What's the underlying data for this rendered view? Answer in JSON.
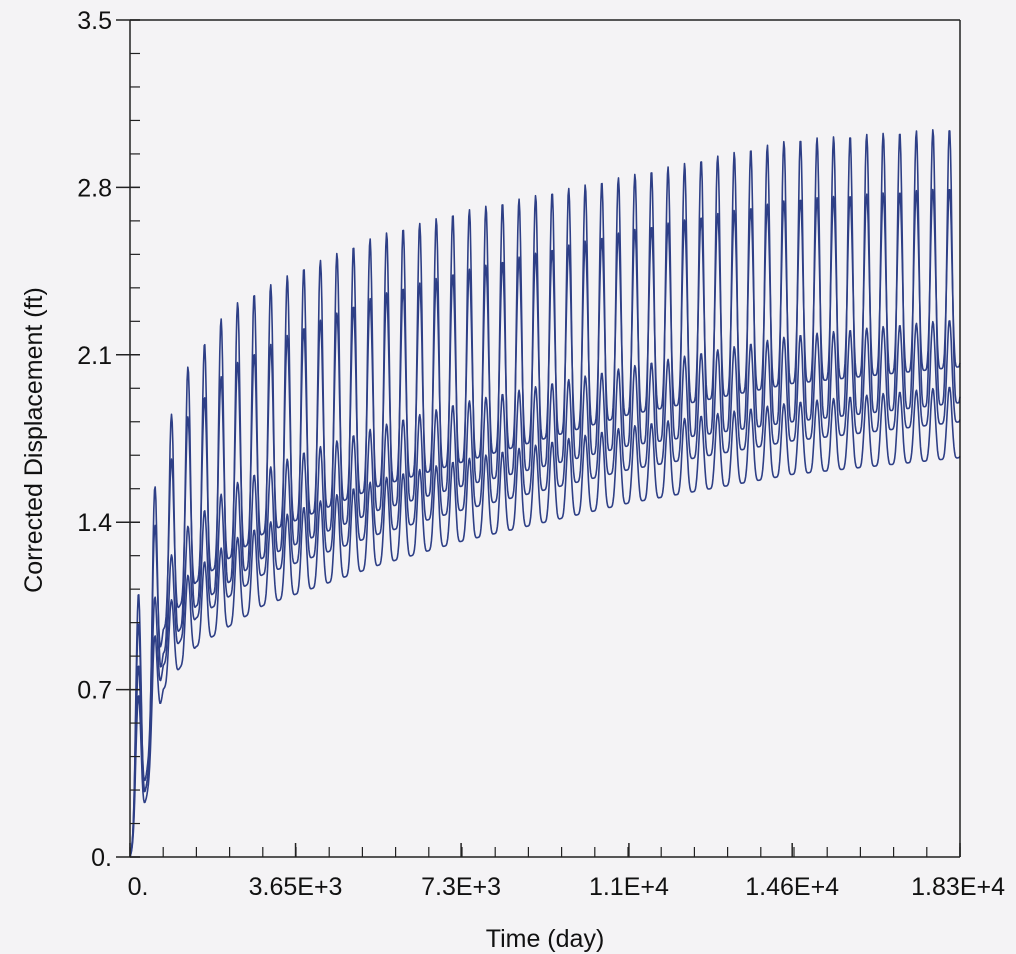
{
  "chart_data": {
    "type": "line",
    "title": "",
    "xlabel": "Time (day)",
    "ylabel": "Corrected Displacement (ft)",
    "xlim": [
      0,
      18300
    ],
    "ylim": [
      0,
      3.5
    ],
    "x_tick_values": [
      0,
      3650,
      7300,
      11000,
      14600,
      18300
    ],
    "x_tick_labels": [
      "0.",
      "3.65E+3",
      "7.3E+3",
      "1.1E+4",
      "1.46E+4",
      "1.83E+4"
    ],
    "y_tick_values": [
      0,
      0.7,
      1.4,
      2.1,
      2.8,
      3.5
    ],
    "y_tick_labels": [
      "0.",
      "0.7",
      "1.4",
      "2.1",
      "2.8",
      "3.5"
    ],
    "grid": false,
    "legend": false,
    "cycle_days": 365,
    "series_color": "#2e3f86",
    "series": [
      {
        "peak_envelope": [
          [
            0,
            0.8
          ],
          [
            365,
            1.4
          ],
          [
            1095,
            2.0
          ],
          [
            2190,
            2.3
          ],
          [
            3650,
            2.45
          ],
          [
            5475,
            2.6
          ],
          [
            7300,
            2.7
          ],
          [
            11000,
            2.85
          ],
          [
            14600,
            3.0
          ],
          [
            18300,
            3.05
          ]
        ],
        "trough_envelope": [
          [
            0,
            0.0
          ],
          [
            365,
            0.3
          ],
          [
            730,
            0.85
          ],
          [
            1460,
            1.05
          ],
          [
            2920,
            1.25
          ],
          [
            5475,
            1.45
          ],
          [
            7300,
            1.55
          ],
          [
            11000,
            1.72
          ],
          [
            14600,
            1.82
          ],
          [
            18300,
            1.9
          ]
        ]
      },
      {
        "peak_envelope": [
          [
            0,
            0.7
          ],
          [
            365,
            1.25
          ],
          [
            1095,
            1.8
          ],
          [
            2190,
            2.05
          ],
          [
            3650,
            2.2
          ],
          [
            5475,
            2.35
          ],
          [
            7300,
            2.45
          ],
          [
            11000,
            2.62
          ],
          [
            14600,
            2.75
          ],
          [
            18300,
            2.8
          ]
        ],
        "trough_envelope": [
          [
            0,
            0.0
          ],
          [
            365,
            0.35
          ],
          [
            730,
            0.95
          ],
          [
            1460,
            1.15
          ],
          [
            2920,
            1.35
          ],
          [
            5475,
            1.55
          ],
          [
            7300,
            1.65
          ],
          [
            11000,
            1.85
          ],
          [
            14600,
            1.98
          ],
          [
            18300,
            2.05
          ]
        ]
      },
      {
        "peak_envelope": [
          [
            0,
            0.6
          ],
          [
            365,
            1.0
          ],
          [
            1095,
            1.35
          ],
          [
            2190,
            1.55
          ],
          [
            3650,
            1.68
          ],
          [
            5475,
            1.8
          ],
          [
            7300,
            1.9
          ],
          [
            11000,
            2.05
          ],
          [
            14600,
            2.18
          ],
          [
            18300,
            2.25
          ]
        ],
        "trough_envelope": [
          [
            0,
            0.0
          ],
          [
            365,
            0.3
          ],
          [
            730,
            0.8
          ],
          [
            1460,
            1.0
          ],
          [
            2920,
            1.18
          ],
          [
            5475,
            1.35
          ],
          [
            7300,
            1.45
          ],
          [
            11000,
            1.62
          ],
          [
            14600,
            1.74
          ],
          [
            18300,
            1.82
          ]
        ]
      },
      {
        "peak_envelope": [
          [
            0,
            0.5
          ],
          [
            365,
            0.85
          ],
          [
            1095,
            1.15
          ],
          [
            2190,
            1.32
          ],
          [
            3650,
            1.45
          ],
          [
            5475,
            1.58
          ],
          [
            7300,
            1.66
          ],
          [
            11000,
            1.8
          ],
          [
            14600,
            1.9
          ],
          [
            18300,
            1.97
          ]
        ],
        "trough_envelope": [
          [
            0,
            0.0
          ],
          [
            365,
            0.25
          ],
          [
            730,
            0.7
          ],
          [
            1460,
            0.88
          ],
          [
            2920,
            1.05
          ],
          [
            5475,
            1.22
          ],
          [
            7300,
            1.32
          ],
          [
            11000,
            1.48
          ],
          [
            14600,
            1.6
          ],
          [
            18300,
            1.67
          ]
        ]
      }
    ]
  }
}
